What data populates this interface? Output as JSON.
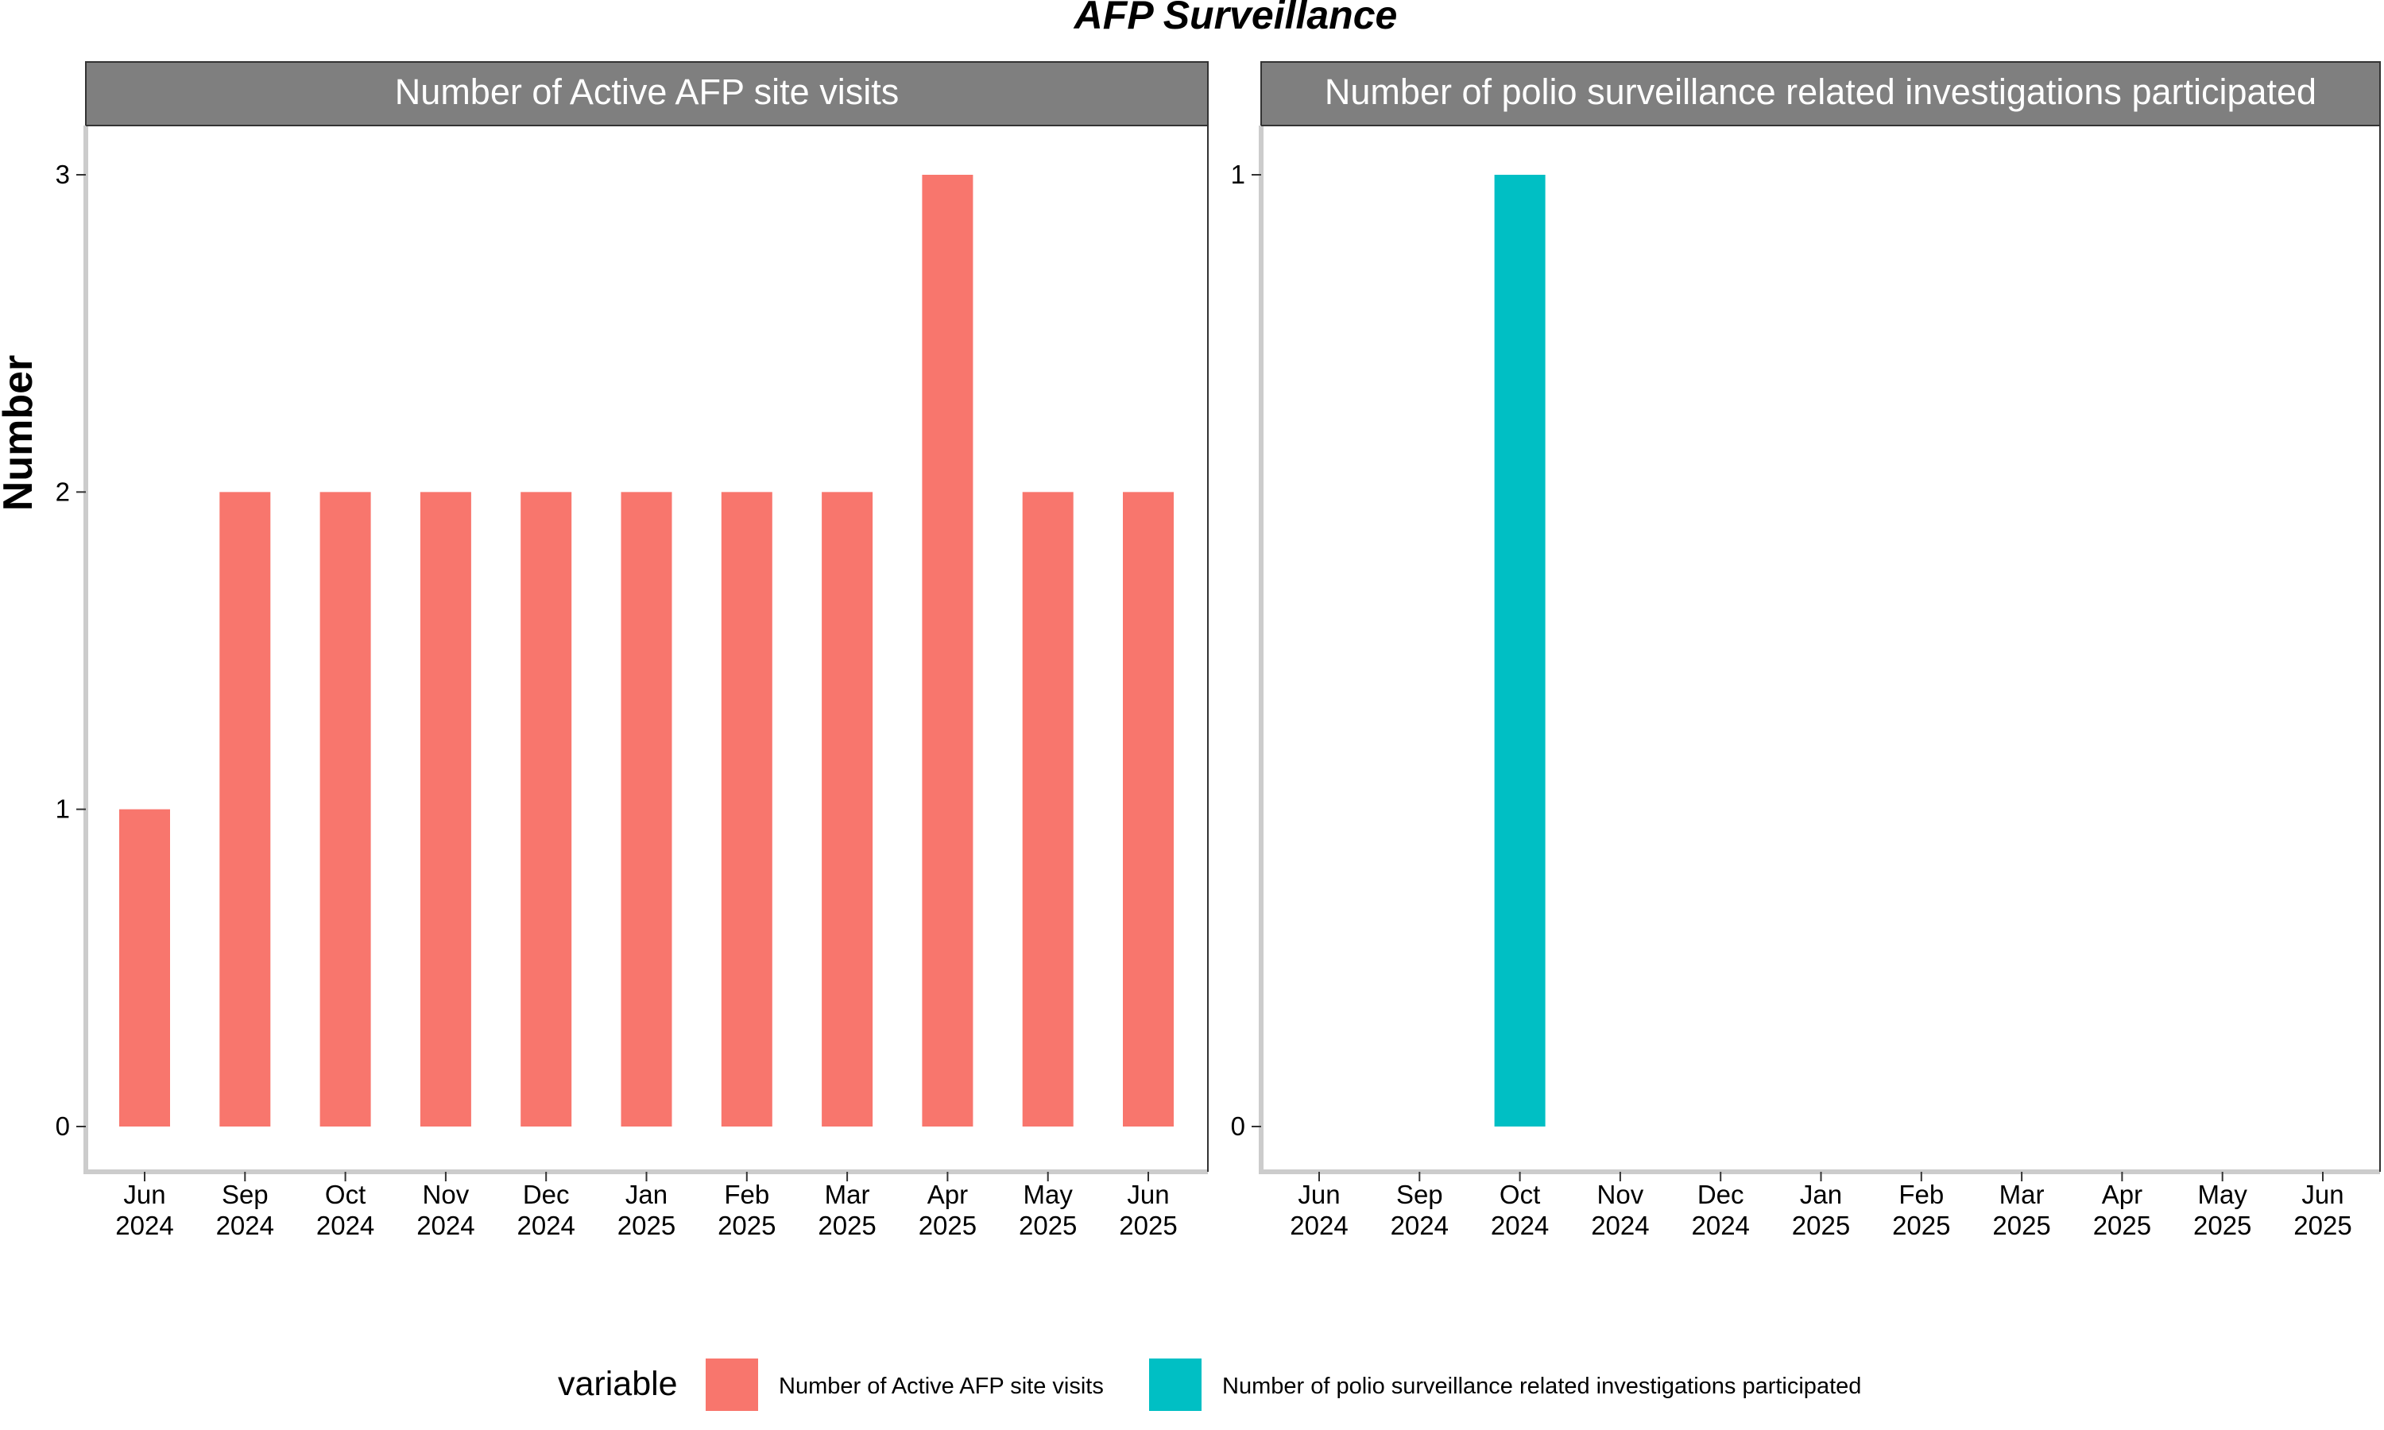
{
  "chart_data": {
    "type": "bar",
    "title": "AFP Surveillance",
    "ylabel": "Number",
    "xlabel": "",
    "categories": [
      "Jun 2024",
      "Sep 2024",
      "Oct 2024",
      "Nov 2024",
      "Dec 2024",
      "Jan 2025",
      "Feb 2025",
      "Mar 2025",
      "Apr 2025",
      "May 2025",
      "Jun 2025"
    ],
    "tick_lines": [
      [
        "Jun",
        "2024"
      ],
      [
        "Sep",
        "2024"
      ],
      [
        "Oct",
        "2024"
      ],
      [
        "Nov",
        "2024"
      ],
      [
        "Dec",
        "2024"
      ],
      [
        "Jan",
        "2025"
      ],
      [
        "Feb",
        "2025"
      ],
      [
        "Mar",
        "2025"
      ],
      [
        "Apr",
        "2025"
      ],
      [
        "May",
        "2025"
      ],
      [
        "Jun",
        "2025"
      ]
    ],
    "facets": [
      {
        "name": "Number of Active AFP site visits",
        "color": "#F8766D",
        "ylim": [
          0,
          3
        ],
        "yticks": [
          "0",
          "1",
          "2",
          "3"
        ],
        "values": [
          1,
          2,
          2,
          2,
          2,
          2,
          2,
          2,
          3,
          2,
          2
        ]
      },
      {
        "name": "Number of polio surveillance related investigations participated",
        "color": "#00BFC4",
        "ylim": [
          0,
          1
        ],
        "yticks": [
          "0",
          "1"
        ],
        "values": [
          null,
          null,
          1,
          null,
          null,
          null,
          null,
          null,
          null,
          null,
          null
        ]
      }
    ],
    "legend": {
      "title": "variable",
      "position": "bottom",
      "items": [
        {
          "label": "Number of Active AFP site visits",
          "color": "#F8766D"
        },
        {
          "label": "Number of polio surveillance related investigations participated",
          "color": "#00BFC4"
        }
      ]
    },
    "grid": false
  }
}
